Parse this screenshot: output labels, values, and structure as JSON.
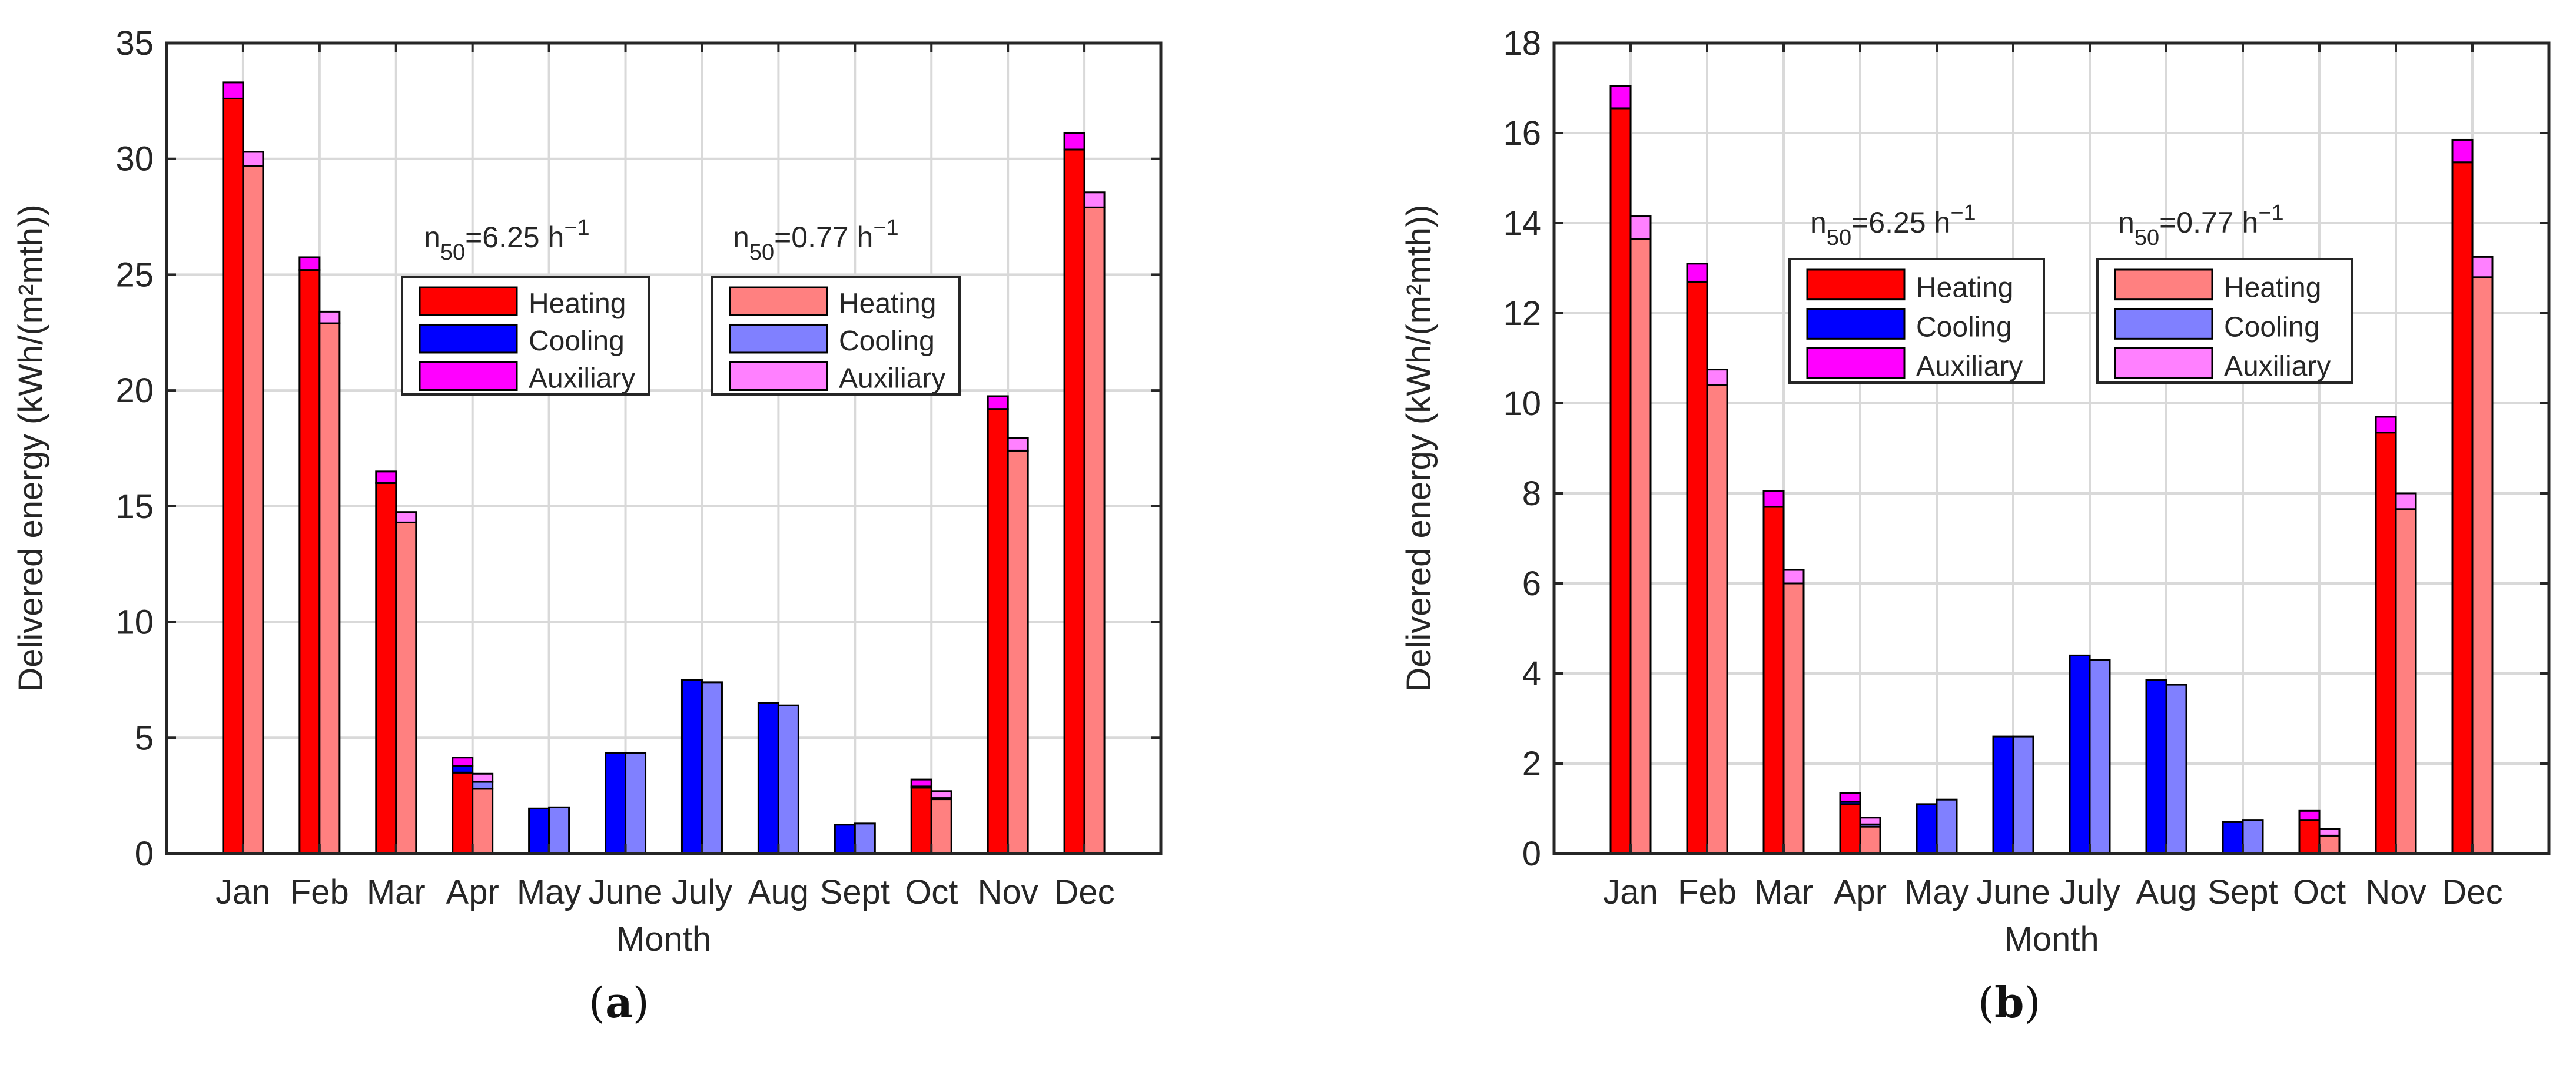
{
  "chart_data": [
    {
      "type": "bar",
      "panel_label": "a",
      "xlabel": "Month",
      "ylabel": "Delivered energy (kWh/(m²mth))",
      "ylim": [
        0,
        35
      ],
      "yticks": [
        "0",
        "5",
        "10",
        "15",
        "20",
        "25",
        "30",
        "35"
      ],
      "grid": true,
      "categories": [
        "Jan",
        "Feb",
        "Mar",
        "Apr",
        "May",
        "June",
        "July",
        "Aug",
        "Sept",
        "Oct",
        "Nov",
        "Dec"
      ],
      "cases": [
        {
          "name": "n50=6.25 h-1",
          "label_main": "n",
          "label_sub": "50",
          "label_mid": "=6.25 h",
          "label_sup": "−1",
          "series": [
            {
              "name": "Heating",
              "color": "#ff0000",
              "values": [
                32.6,
                25.2,
                16.0,
                3.5,
                0.0,
                0.0,
                0.0,
                0.0,
                0.0,
                2.85,
                19.2,
                30.4
              ]
            },
            {
              "name": "Cooling",
              "color": "#0000ff",
              "values": [
                0.0,
                0.0,
                0.0,
                0.3,
                1.95,
                4.35,
                7.5,
                6.5,
                1.25,
                0.05,
                0.0,
                0.0
              ]
            },
            {
              "name": "Auxiliary",
              "color": "#ff00ff",
              "values": [
                0.7,
                0.55,
                0.5,
                0.35,
                0.0,
                0.0,
                0.0,
                0.0,
                0.0,
                0.3,
                0.55,
                0.7
              ]
            }
          ]
        },
        {
          "name": "n50=0.77 h-1",
          "label_main": "n",
          "label_sub": "50",
          "label_mid": "=0.77 h",
          "label_sup": "−1",
          "series": [
            {
              "name": "Heating",
              "color": "#ff8080",
              "values": [
                29.7,
                22.9,
                14.3,
                2.8,
                0.0,
                0.0,
                0.0,
                0.0,
                0.0,
                2.35,
                17.4,
                27.9
              ]
            },
            {
              "name": "Cooling",
              "color": "#8080ff",
              "values": [
                0.0,
                0.0,
                0.0,
                0.3,
                2.0,
                4.35,
                7.4,
                6.4,
                1.3,
                0.05,
                0.0,
                0.0
              ]
            },
            {
              "name": "Auxiliary",
              "color": "#ff80ff",
              "values": [
                0.6,
                0.5,
                0.45,
                0.35,
                0.0,
                0.0,
                0.0,
                0.0,
                0.0,
                0.3,
                0.55,
                0.65
              ]
            }
          ]
        }
      ]
    },
    {
      "type": "bar",
      "panel_label": "b",
      "xlabel": "Month",
      "ylabel": "Delivered energy (kWh/(m²mth))",
      "ylim": [
        0,
        18
      ],
      "yticks": [
        "0",
        "2",
        "4",
        "6",
        "8",
        "10",
        "12",
        "14",
        "16",
        "18"
      ],
      "grid": true,
      "categories": [
        "Jan",
        "Feb",
        "Mar",
        "Apr",
        "May",
        "June",
        "July",
        "Aug",
        "Sept",
        "Oct",
        "Nov",
        "Dec"
      ],
      "cases": [
        {
          "name": "n50=6.25 h-1",
          "label_main": "n",
          "label_sub": "50",
          "label_mid": "=6.25 h",
          "label_sup": "−1",
          "series": [
            {
              "name": "Heating",
              "color": "#ff0000",
              "values": [
                16.55,
                12.7,
                7.7,
                1.1,
                0.0,
                0.0,
                0.0,
                0.0,
                0.0,
                0.75,
                9.35,
                15.35
              ]
            },
            {
              "name": "Cooling",
              "color": "#0000ff",
              "values": [
                0.0,
                0.0,
                0.0,
                0.05,
                1.1,
                2.6,
                4.4,
                3.85,
                0.7,
                0.0,
                0.0,
                0.0
              ]
            },
            {
              "name": "Auxiliary",
              "color": "#ff00ff",
              "values": [
                0.5,
                0.4,
                0.35,
                0.2,
                0.0,
                0.0,
                0.0,
                0.0,
                0.0,
                0.2,
                0.35,
                0.5
              ]
            }
          ]
        },
        {
          "name": "n50=0.77 h-1",
          "label_main": "n",
          "label_sub": "50",
          "label_mid": "=0.77 h",
          "label_sup": "−1",
          "series": [
            {
              "name": "Heating",
              "color": "#ff8080",
              "values": [
                13.65,
                10.4,
                6.0,
                0.6,
                0.0,
                0.0,
                0.0,
                0.0,
                0.0,
                0.4,
                7.65,
                12.8
              ]
            },
            {
              "name": "Cooling",
              "color": "#8080ff",
              "values": [
                0.0,
                0.0,
                0.0,
                0.05,
                1.2,
                2.6,
                4.3,
                3.75,
                0.75,
                0.0,
                0.0,
                0.0
              ]
            },
            {
              "name": "Auxiliary",
              "color": "#ff80ff",
              "values": [
                0.5,
                0.35,
                0.3,
                0.15,
                0.0,
                0.0,
                0.0,
                0.0,
                0.0,
                0.15,
                0.35,
                0.45
              ]
            }
          ]
        }
      ]
    }
  ],
  "captions": [
    {
      "open": "(",
      "letter": "a",
      "close": ")"
    },
    {
      "open": "(",
      "letter": "b",
      "close": ")"
    }
  ]
}
